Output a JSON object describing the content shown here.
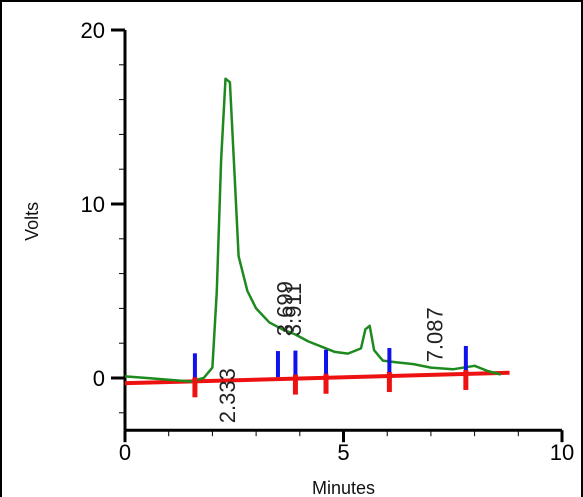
{
  "chart_data": {
    "type": "line",
    "xlabel": "Minutes",
    "ylabel": "Volts",
    "xlim": [
      0,
      10
    ],
    "ylim": [
      -3,
      20
    ],
    "x_ticks": [
      0,
      5,
      10
    ],
    "y_ticks": [
      0,
      10,
      20
    ],
    "grid": false,
    "colors": {
      "signal": "#1e8a1e",
      "baseline": "#ee1111",
      "marker_start": "#1111ee",
      "marker_end": "#ee1111"
    },
    "series": [
      {
        "x": [
          0,
          0.5,
          1.0,
          1.5,
          1.8,
          2.0,
          2.1,
          2.2,
          2.3,
          2.4,
          2.5,
          2.6,
          2.8,
          3.0,
          3.3,
          3.6,
          3.9,
          4.2,
          4.5,
          4.8,
          5.1,
          5.4,
          5.5,
          5.6,
          5.7,
          5.9,
          6.2,
          6.6,
          7.0,
          7.5,
          8.0,
          8.3,
          8.6
        ],
        "y": [
          0.1,
          0.0,
          -0.1,
          -0.2,
          0.0,
          0.6,
          5.0,
          12.5,
          17.2,
          17.0,
          12.0,
          7.0,
          5.0,
          4.0,
          3.2,
          2.8,
          2.5,
          2.1,
          1.8,
          1.5,
          1.4,
          1.7,
          2.8,
          3.0,
          1.6,
          1.0,
          0.9,
          0.8,
          0.6,
          0.5,
          0.7,
          0.4,
          0.2
        ]
      }
    ],
    "baseline": {
      "x": [
        0,
        8.8
      ],
      "y": [
        -0.3,
        0.3
      ]
    },
    "peak_labels": [
      {
        "text": "2.333",
        "x": 2.333,
        "y": 2.0
      },
      {
        "text": "3.699",
        "x": 3.65,
        "y": 7.0
      },
      {
        "text": "3.911",
        "x": 3.85,
        "y": 7.0
      },
      {
        "text": "7.087",
        "x": 7.087,
        "y": 5.5
      }
    ],
    "peak_start_markers": [
      1.6,
      3.5,
      3.9,
      4.6,
      6.05,
      7.8
    ],
    "peak_end_markers": [
      1.6,
      3.9,
      4.6,
      6.05,
      7.8
    ]
  }
}
